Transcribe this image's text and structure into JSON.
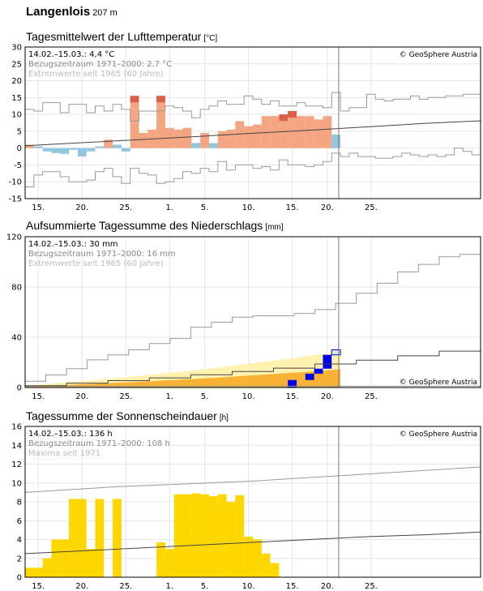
{
  "page": {
    "station": "Langenlois",
    "elevation": "207 m"
  },
  "x_tick_labels": [
    "15.",
    "20.",
    "25.",
    "1.",
    "5.",
    "10.",
    "15.",
    "20.",
    "25."
  ],
  "colors": {
    "warm_dark": "#d9604a",
    "warm_light": "#f4a582",
    "cold": "#92c5de",
    "precip_yellow": "#fff2b0",
    "precip_orange": "#f9b233",
    "precip_blue": "#0000ee",
    "precip_green": "#d7eed7",
    "sun": "#ffd700",
    "grid": "#e6e6e6",
    "climate_line": "#444444",
    "extreme_line": "#9a9a9a"
  },
  "chart_data": [
    {
      "type": "bar",
      "id": "temp",
      "title": "Tagesmittelwert der Lufttemperatur",
      "unit": "[°C]",
      "info": {
        "line1": "14.02.–15.03.: 4,4 °C",
        "line2": "Bezugszeitraum 1971–2000: 2,7 °C",
        "line3": "Extremwerte seit 1965 (60 Jahre)"
      },
      "copyright": "© GeoSphere Austria",
      "ylim": [
        -15,
        30
      ],
      "yticks": [
        -15,
        -10,
        -5,
        0,
        5,
        10,
        15,
        20,
        25,
        30
      ],
      "values": [
        1,
        0.5,
        -1,
        -1.5,
        -1.7,
        -0.5,
        -2.5,
        -1,
        0.5,
        2.5,
        1,
        -1,
        15.5,
        4.5,
        5.5,
        15.5,
        6,
        5.5,
        6,
        1.5,
        4.5,
        1.5,
        5,
        5.5,
        8,
        6.5,
        7,
        9.5,
        9.5,
        10,
        11,
        9.5,
        9.5,
        8.5,
        9.5,
        4
      ],
      "climate_mean": [
        0.7,
        1.6,
        2.5,
        3.4,
        4.4,
        5.3,
        6.3,
        7.3,
        8.1
      ],
      "extreme_max": [
        11.5,
        11,
        13.5,
        13.5,
        10.5,
        13,
        13,
        10.5,
        12.5,
        11,
        13,
        11.5,
        8,
        11,
        11,
        11,
        12.5,
        12,
        11,
        9,
        11.5,
        12.5,
        14,
        13,
        13,
        15.5,
        14.5,
        13,
        14,
        12.5,
        12.5,
        13.5,
        12.5,
        12.5,
        12,
        16.5,
        11,
        12,
        12,
        16,
        14.5,
        14,
        14.5,
        14.5,
        15.5,
        14.5,
        15,
        15,
        15.5,
        15.5,
        16,
        16
      ],
      "extreme_min": [
        -11.5,
        -8,
        -7,
        -7,
        -8.5,
        -10,
        -10,
        -9.5,
        -7,
        -6,
        -8.5,
        -10.5,
        -6,
        -7.5,
        -8,
        -10.5,
        -10,
        -9,
        -7,
        -7.5,
        -6,
        -7,
        -4,
        -6.5,
        -5,
        -5,
        -6,
        -5.5,
        -6.5,
        -3.5,
        -5,
        -5,
        -5.5,
        -5,
        -4,
        -1.5,
        -2.5,
        -1.5,
        -2.5,
        -2.5,
        -3,
        -3,
        -2.5,
        -1.5,
        -2,
        -2.5,
        -2,
        -2.5,
        -2,
        0,
        -1,
        -2
      ]
    },
    {
      "type": "area",
      "id": "precip",
      "title": "Aufsummierte Tagessumme des Niederschlags",
      "unit": "[mm]",
      "info": {
        "line1": "14.02.–15.03.: 30 mm",
        "line2": "Bezugszeitraum 1971–2000: 16 mm",
        "line3": "Extremwerte seit 1965 (60 Jahre)"
      },
      "copyright": "© GeoSphere Austria",
      "ylim": [
        0,
        120
      ],
      "yticks": [
        0,
        40,
        80,
        120
      ],
      "cumulative": [
        0,
        0,
        0,
        0,
        0,
        0,
        0,
        0,
        0,
        0,
        0,
        0,
        0,
        0,
        0,
        0,
        0,
        0,
        0,
        0,
        0,
        0,
        0,
        0,
        0,
        0,
        0,
        0,
        0,
        0,
        6,
        6,
        11,
        15,
        26,
        30
      ],
      "climate_mean": [
        1.5,
        3.5,
        5.5,
        7.7,
        10.2,
        12.8,
        15.4,
        18.7,
        21.8,
        25.2,
        29
      ],
      "extreme_max": [
        5,
        10,
        15,
        22,
        26,
        30,
        35,
        39,
        48,
        52,
        56,
        57,
        57,
        59,
        62,
        67,
        75,
        83,
        92,
        98,
        104,
        106
      ],
      "extreme_min": [
        1,
        1,
        1,
        1,
        1,
        1,
        1,
        1,
        1,
        1,
        1,
        1,
        1,
        1,
        1,
        1,
        1,
        1,
        1
      ]
    },
    {
      "type": "bar",
      "id": "sun",
      "title": "Tagessumme der Sonnenscheindauer",
      "unit": "[h]",
      "info": {
        "line1": "14.02.–15.03.: 136 h",
        "line2": "Bezugszeitraum 1971–2000: 108 h",
        "line3": "Maxima seit 1971"
      },
      "copyright": "© GeoSphere Austria",
      "ylim": [
        0,
        16
      ],
      "yticks": [
        0,
        2,
        4,
        6,
        8,
        10,
        12,
        14,
        16
      ],
      "values": [
        1,
        1,
        2,
        4,
        4,
        8.3,
        8.3,
        3,
        8.3,
        0,
        8.3,
        0,
        0,
        0,
        0,
        3.7,
        3,
        8.8,
        8.8,
        8.9,
        8.8,
        8.6,
        8.8,
        8,
        8.7,
        4.3,
        4,
        2.5,
        1.5
      ],
      "climate_mean": [
        2.5,
        2.8,
        3.1,
        3.4,
        3.7,
        4.0,
        4.3,
        4.5,
        4.8
      ],
      "maxima": [
        9,
        9.3,
        9.6,
        9.8,
        10.0,
        10.2,
        10.5,
        10.8,
        11.1,
        11.4,
        11.7
      ]
    }
  ]
}
